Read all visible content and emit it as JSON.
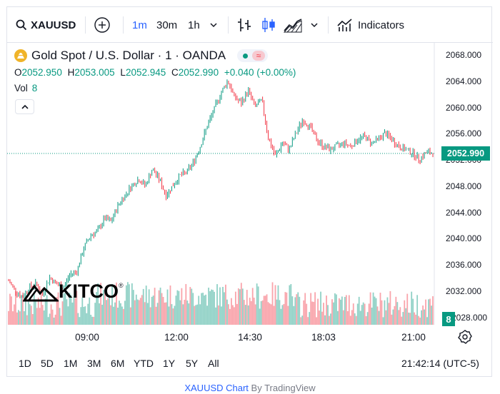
{
  "toolbar": {
    "symbol": "XAUUSD",
    "intervals": [
      "1m",
      "30m",
      "1h"
    ],
    "active_interval": "1m",
    "indicators_label": "Indicators",
    "icons": [
      "search-icon",
      "add-compare-icon",
      "chevron-down-icon",
      "bar-style-icon",
      "candle-style-icon",
      "area-style-icon",
      "indicators-icon"
    ]
  },
  "legend": {
    "title": "Gold Spot / U.S. Dollar · 1 · OANDA",
    "o_key": "O",
    "o_val": "2052.950",
    "h_key": "H",
    "h_val": "2053.005",
    "l_key": "L",
    "l_val": "2052.945",
    "c_key": "C",
    "c_val": "2052.990",
    "change": "+0.040 (+0.00%)",
    "vol_label": "Vol",
    "vol_val": "8"
  },
  "price_axis": [
    "2068.000",
    "2064.000",
    "2060.000",
    "2056.000",
    "2052.000",
    "2048.000",
    "2044.000",
    "2040.000",
    "2036.000",
    "2032.000",
    "2028.000"
  ],
  "current_price": "2052.990",
  "volume_badge": "8",
  "time_axis": [
    "09:00",
    "12:00",
    "14:30",
    "18:03",
    "21:00"
  ],
  "ranges": [
    "1D",
    "5D",
    "1M",
    "3M",
    "6M",
    "YTD",
    "1Y",
    "5Y",
    "All"
  ],
  "clock": "21:42:14 (UTC-5)",
  "watermark": "KITCO",
  "footer": {
    "link": "XAUUSD Chart",
    "by": "By TradingView"
  },
  "colors": {
    "up": "#089981",
    "down": "#f23645",
    "accent": "#2962ff"
  },
  "chart_data": {
    "type": "candlestick",
    "y_range": [
      2026,
      2070
    ],
    "price_points": [
      2033.5,
      2032.0,
      2031.0,
      2032.5,
      2033.0,
      2031.5,
      2034.0,
      2033.0,
      2032.5,
      2034.5,
      2035.0,
      2038.5,
      2040.5,
      2041.0,
      2043.0,
      2042.5,
      2045.0,
      2046.5,
      2048.0,
      2049.0,
      2048.0,
      2050.5,
      2049.0,
      2046.5,
      2048.0,
      2049.5,
      2050.0,
      2051.5,
      2054.0,
      2057.0,
      2059.5,
      2062.0,
      2064.0,
      2061.5,
      2060.5,
      2062.5,
      2060.0,
      2061.0,
      2055.0,
      2052.5,
      2054.5,
      2053.5,
      2056.0,
      2058.0,
      2057.0,
      2055.0,
      2054.0,
      2053.5,
      2054.0,
      2054.5,
      2054.0,
      2055.0,
      2055.5,
      2054.5,
      2055.0,
      2056.0,
      2055.0,
      2054.0,
      2053.5,
      2053.0,
      2052.0,
      2053.0,
      2052.99
    ]
  }
}
